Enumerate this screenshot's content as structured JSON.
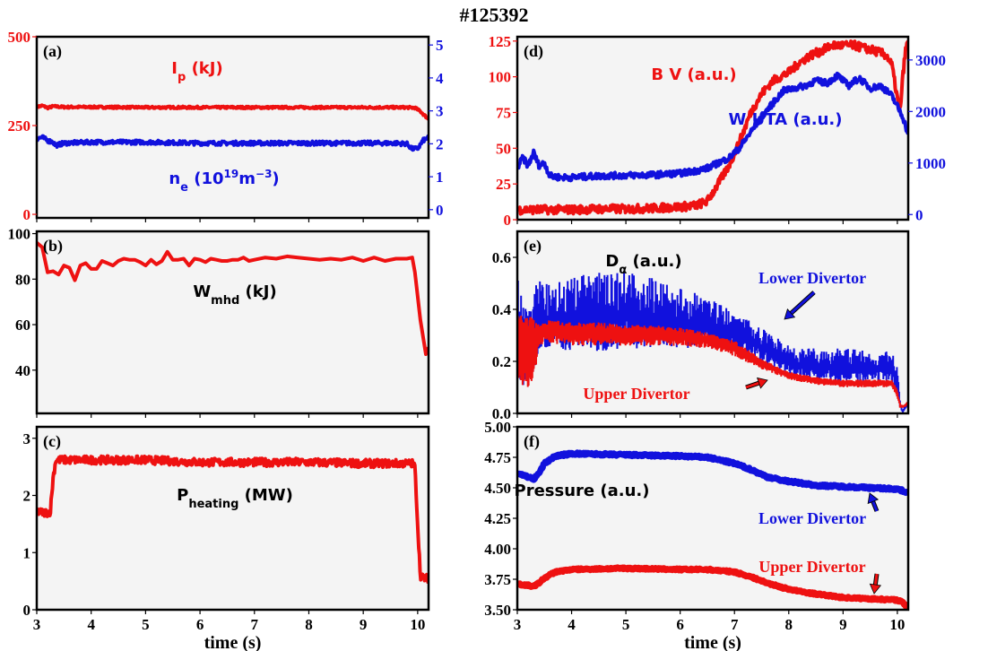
{
  "figure_title": "#125392",
  "colors": {
    "red": "#ee1111",
    "blue": "#1111dd",
    "axes_bg": "#f4f4f4",
    "frame": "#000000"
  },
  "chart_data": [
    {
      "id": "a",
      "type": "line",
      "panel_label": "(a)",
      "x_ticks": [
        3,
        4,
        5,
        6,
        7,
        8,
        9,
        10
      ],
      "x_tick_labels": [
        "",
        "",
        "",
        "",
        "",
        "",
        "",
        ""
      ],
      "xlim": [
        3,
        10.2
      ],
      "xlabel": "",
      "y_left": {
        "ylim": [
          -10,
          500
        ],
        "ticks": [
          0,
          250,
          500
        ],
        "tick_labels": [
          "0",
          "250",
          "500"
        ],
        "color": "#ee1111"
      },
      "y_right": {
        "ylim": [
          -0.25,
          5.25
        ],
        "ticks": [
          0,
          1,
          2,
          3,
          4,
          5
        ],
        "tick_labels": [
          "0",
          "1",
          "2",
          "3",
          "4",
          "5"
        ],
        "color": "#1111dd"
      },
      "series": [
        {
          "name": "Ip (kJ)",
          "axis": "left",
          "color": "#ee1111",
          "width": 4,
          "noise": 3,
          "x": [
            3,
            3.1,
            3.2,
            3.3,
            3.5,
            4,
            5,
            6,
            7,
            8,
            9,
            9.8,
            9.95,
            10.05,
            10.15,
            10.2
          ],
          "y": [
            302,
            306,
            300,
            304,
            302,
            302,
            301,
            301,
            301,
            301,
            301,
            301,
            300,
            290,
            275,
            268
          ]
        },
        {
          "name": "ne (10^19 m^-3)",
          "axis": "right",
          "color": "#1111dd",
          "width": 4,
          "noise": 0.06,
          "x": [
            3,
            3.1,
            3.2,
            3.3,
            3.35,
            3.5,
            4,
            5,
            6,
            7,
            8,
            9,
            9.6,
            9.8,
            9.9,
            10.0,
            10.1,
            10.2
          ],
          "y": [
            2.15,
            2.2,
            2.1,
            2.05,
            1.95,
            2.02,
            2.05,
            2.05,
            2.02,
            2.02,
            2.02,
            2.02,
            2.02,
            2.0,
            1.85,
            1.85,
            2.1,
            2.2
          ]
        }
      ],
      "annotations": [
        {
          "text": "I",
          "sub": "p",
          "rest": " (kJ)",
          "color": "#ee1111"
        },
        {
          "text": "n",
          "sub": "e",
          "rest": " (10",
          "sup": "19",
          "rest2": "m",
          "sup2": "−3",
          "rest3": ")",
          "color": "#1111dd"
        }
      ]
    },
    {
      "id": "b",
      "type": "line",
      "panel_label": "(b)",
      "x_ticks": [
        3,
        4,
        5,
        6,
        7,
        8,
        9,
        10
      ],
      "x_tick_labels": [
        "",
        "",
        "",
        "",
        "",
        "",
        "",
        ""
      ],
      "xlim": [
        3,
        10.2
      ],
      "xlabel": "",
      "y_left": {
        "ylim": [
          21,
          101
        ],
        "ticks": [
          40,
          60,
          80,
          100
        ],
        "tick_labels": [
          "40",
          "60",
          "80",
          "100"
        ],
        "color": "#000000"
      },
      "series": [
        {
          "name": "Wmhd (kJ)",
          "axis": "left",
          "color": "#ee1111",
          "width": 4,
          "noise": 0,
          "x": [
            3,
            3.1,
            3.2,
            3.3,
            3.4,
            3.5,
            3.6,
            3.7,
            3.8,
            3.9,
            4.0,
            4.1,
            4.2,
            4.3,
            4.4,
            4.5,
            4.6,
            4.7,
            4.8,
            4.9,
            5.0,
            5.1,
            5.2,
            5.3,
            5.4,
            5.5,
            5.6,
            5.7,
            5.8,
            5.9,
            6.0,
            6.1,
            6.2,
            6.3,
            6.4,
            6.5,
            6.6,
            6.7,
            6.8,
            6.9,
            7.0,
            7.2,
            7.4,
            7.6,
            7.8,
            8.0,
            8.2,
            8.4,
            8.6,
            8.8,
            9.0,
            9.2,
            9.4,
            9.6,
            9.8,
            9.9,
            9.95,
            10.05,
            10.15,
            10.2
          ],
          "y": [
            96,
            94,
            83,
            83.5,
            82,
            86,
            85,
            79.5,
            86,
            87,
            84.5,
            84.5,
            88,
            87,
            86,
            88,
            89,
            88.5,
            88.5,
            87.5,
            86,
            88.5,
            86.5,
            88,
            92,
            88.5,
            88.5,
            89,
            86,
            89,
            88.5,
            87.5,
            89,
            88.5,
            88,
            88,
            88.5,
            88.5,
            89.5,
            88,
            88.5,
            89.5,
            89,
            90,
            89.5,
            89,
            88.5,
            89,
            88.5,
            89.5,
            88,
            89.5,
            88,
            89,
            89,
            89.5,
            83,
            62,
            47,
            50
          ]
        }
      ],
      "annotations": [
        {
          "text": "W",
          "sub": "mhd",
          "rest": " (kJ)",
          "color": "#000000"
        }
      ]
    },
    {
      "id": "c",
      "type": "line",
      "panel_label": "(c)",
      "x_ticks": [
        3,
        4,
        5,
        6,
        7,
        8,
        9,
        10
      ],
      "x_tick_labels": [
        "3",
        "4",
        "5",
        "6",
        "7",
        "8",
        "9",
        "10"
      ],
      "xlim": [
        3,
        10.2
      ],
      "xlabel": "time (s)",
      "y_left": {
        "ylim": [
          0,
          3.2
        ],
        "ticks": [
          0,
          1,
          2,
          3
        ],
        "tick_labels": [
          "0",
          "1",
          "2",
          "3"
        ],
        "color": "#000000"
      },
      "series": [
        {
          "name": "Pheating (MW)",
          "axis": "left",
          "color": "#ee1111",
          "width": 4,
          "noise": 0.07,
          "x": [
            3,
            3.1,
            3.2,
            3.25,
            3.3,
            3.35,
            4,
            5,
            6,
            7,
            8,
            9,
            9.8,
            9.9,
            9.95,
            10.0,
            10.05,
            10.1,
            10.2
          ],
          "y": [
            1.72,
            1.7,
            1.7,
            1.72,
            2.3,
            2.62,
            2.62,
            2.62,
            2.58,
            2.58,
            2.58,
            2.56,
            2.56,
            2.56,
            2.5,
            1.5,
            0.6,
            0.55,
            0.55
          ]
        }
      ],
      "annotations": [
        {
          "text": "P",
          "sub": "heating",
          "rest": " (MW)",
          "color": "#000000"
        }
      ]
    },
    {
      "id": "d",
      "type": "line",
      "panel_label": "(d)",
      "x_ticks": [
        3,
        4,
        5,
        6,
        7,
        8,
        9,
        10
      ],
      "x_tick_labels": [
        "",
        "",
        "",
        "",
        "",
        "",
        "",
        ""
      ],
      "xlim": [
        3,
        10.2
      ],
      "xlabel": "",
      "y_left": {
        "ylim": [
          0,
          128
        ],
        "ticks": [
          0,
          25,
          50,
          75,
          100,
          125
        ],
        "tick_labels": [
          "0",
          "25",
          "50",
          "75",
          "100",
          "125"
        ],
        "color": "#ee1111"
      },
      "y_right": {
        "ylim": [
          -100,
          3450
        ],
        "ticks": [
          0,
          1000,
          2000,
          3000
        ],
        "tick_labels": [
          "0",
          "1000",
          "2000",
          "3000"
        ],
        "color": "#1111dd"
      },
      "series": [
        {
          "name": "B V (a.u.)",
          "axis": "left",
          "color": "#ee1111",
          "width": 4,
          "noise": 3,
          "x": [
            3,
            3.5,
            4,
            4.5,
            5,
            5.5,
            6,
            6.3,
            6.5,
            6.7,
            6.9,
            7.1,
            7.3,
            7.5,
            7.7,
            8.0,
            8.2,
            8.4,
            8.6,
            8.8,
            9.0,
            9.2,
            9.4,
            9.6,
            9.8,
            9.9,
            10.0,
            10.05,
            10.1,
            10.15,
            10.2
          ],
          "y": [
            7,
            7,
            7,
            7.5,
            7.5,
            8,
            9,
            10,
            13,
            25,
            38,
            55,
            75,
            88,
            97,
            103,
            110,
            115,
            118,
            122,
            122,
            122,
            120,
            118,
            115,
            108,
            85,
            75,
            100,
            118,
            125
          ]
        },
        {
          "name": "W UTA (a.u.)",
          "axis": "right",
          "color": "#1111dd",
          "width": 4,
          "noise": 60,
          "x": [
            3,
            3.1,
            3.2,
            3.3,
            3.4,
            3.5,
            3.6,
            3.8,
            4,
            4.5,
            5,
            5.5,
            6,
            6.3,
            6.5,
            6.7,
            6.9,
            7.1,
            7.3,
            7.5,
            7.7,
            7.9,
            8.1,
            8.3,
            8.5,
            8.7,
            8.9,
            9.1,
            9.3,
            9.5,
            9.7,
            9.9,
            10.0,
            10.1,
            10.2
          ],
          "y": [
            900,
            1100,
            950,
            1200,
            950,
            1000,
            750,
            720,
            720,
            750,
            760,
            770,
            800,
            850,
            900,
            1000,
            1100,
            1300,
            1600,
            1900,
            2150,
            2400,
            2450,
            2500,
            2600,
            2550,
            2700,
            2500,
            2650,
            2450,
            2500,
            2300,
            2100,
            1900,
            1550
          ]
        }
      ],
      "annotations": [
        {
          "text": "B V (a.u.)",
          "color": "#ee1111"
        },
        {
          "text": "W UTA (a.u.)",
          "color": "#1111dd"
        }
      ]
    },
    {
      "id": "e",
      "type": "line",
      "panel_label": "(e)",
      "x_ticks": [
        3,
        4,
        5,
        6,
        7,
        8,
        9,
        10
      ],
      "x_tick_labels": [
        "",
        "",
        "",
        "",
        "",
        "",
        "",
        ""
      ],
      "xlim": [
        3,
        10.2
      ],
      "xlabel": "",
      "y_left": {
        "ylim": [
          0,
          0.7
        ],
        "ticks": [
          0.0,
          0.2,
          0.4,
          0.6
        ],
        "tick_labels": [
          "0.0",
          "0.2",
          "0.4",
          "0.6"
        ],
        "color": "#000000"
      },
      "series": [
        {
          "name": "Lower Divertor",
          "axis": "left",
          "color": "#1111dd",
          "band": true,
          "x": [
            3,
            3.1,
            3.2,
            3.3,
            3.4,
            3.6,
            4,
            4.5,
            5,
            5.5,
            6,
            6.5,
            7,
            7.5,
            8,
            8.5,
            9,
            9.5,
            9.9,
            10.0,
            10.05,
            10.1,
            10.2
          ],
          "y_low": [
            0.1,
            0.1,
            0.09,
            0.15,
            0.25,
            0.25,
            0.24,
            0.24,
            0.25,
            0.25,
            0.25,
            0.25,
            0.24,
            0.2,
            0.15,
            0.13,
            0.12,
            0.12,
            0.12,
            0.08,
            0.02,
            0.0,
            0.03
          ],
          "y_high": [
            0.55,
            0.5,
            0.42,
            0.5,
            0.52,
            0.5,
            0.52,
            0.55,
            0.55,
            0.52,
            0.48,
            0.45,
            0.4,
            0.33,
            0.26,
            0.25,
            0.25,
            0.24,
            0.24,
            0.18,
            0.05,
            0.02,
            0.04
          ]
        },
        {
          "name": "Upper Divertor",
          "axis": "left",
          "color": "#ee1111",
          "band": true,
          "x": [
            3,
            3.1,
            3.2,
            3.3,
            3.4,
            3.6,
            4,
            4.5,
            5,
            5.5,
            6,
            6.5,
            7,
            7.5,
            8,
            8.5,
            9,
            9.5,
            9.9,
            10.0,
            10.05,
            10.1,
            10.2
          ],
          "y_low": [
            0.08,
            0.1,
            0.1,
            0.12,
            0.26,
            0.27,
            0.26,
            0.26,
            0.26,
            0.26,
            0.26,
            0.25,
            0.22,
            0.17,
            0.13,
            0.11,
            0.1,
            0.1,
            0.1,
            0.06,
            0.02,
            0.02,
            0.03
          ],
          "y_high": [
            0.38,
            0.38,
            0.39,
            0.36,
            0.34,
            0.36,
            0.35,
            0.35,
            0.34,
            0.34,
            0.33,
            0.31,
            0.28,
            0.21,
            0.16,
            0.14,
            0.13,
            0.13,
            0.13,
            0.09,
            0.04,
            0.03,
            0.05
          ]
        }
      ],
      "annotations": [
        {
          "text": "D",
          "sub": "α",
          "rest": " (a.u.)",
          "color": "#000000"
        },
        {
          "text": "Lower Divertor",
          "color": "#1111dd"
        },
        {
          "text": "Upper Divertor",
          "color": "#ee1111"
        }
      ]
    },
    {
      "id": "f",
      "type": "line",
      "panel_label": "(f)",
      "x_ticks": [
        3,
        4,
        5,
        6,
        7,
        8,
        9,
        10
      ],
      "x_tick_labels": [
        "3",
        "4",
        "5",
        "6",
        "7",
        "8",
        "9",
        "10"
      ],
      "xlim": [
        3,
        10.2
      ],
      "xlabel": "time (s)",
      "y_left": {
        "ylim": [
          3.5,
          5.0
        ],
        "ticks": [
          3.5,
          3.75,
          4.0,
          4.25,
          4.5,
          4.75,
          5.0
        ],
        "tick_labels": [
          "3.50",
          "3.75",
          "4.00",
          "4.25",
          "4.50",
          "4.75",
          "5.00"
        ],
        "color": "#000000"
      },
      "series": [
        {
          "name": "Lower Divertor",
          "axis": "left",
          "color": "#1111dd",
          "width": 7,
          "noise": 0.01,
          "x": [
            3,
            3.2,
            3.3,
            3.4,
            3.5,
            3.7,
            4,
            5,
            6,
            6.5,
            7,
            7.3,
            7.6,
            7.9,
            8.2,
            8.5,
            9,
            9.5,
            10,
            10.2
          ],
          "y": [
            4.62,
            4.59,
            4.57,
            4.62,
            4.7,
            4.76,
            4.78,
            4.77,
            4.76,
            4.75,
            4.7,
            4.65,
            4.59,
            4.56,
            4.54,
            4.52,
            4.51,
            4.5,
            4.49,
            4.46
          ]
        },
        {
          "name": "Upper Divertor",
          "axis": "left",
          "color": "#ee1111",
          "width": 7,
          "noise": 0.008,
          "x": [
            3,
            3.2,
            3.3,
            3.4,
            3.5,
            3.7,
            4,
            5,
            6,
            6.5,
            7,
            7.3,
            7.6,
            7.9,
            8.2,
            8.5,
            9,
            9.5,
            10,
            10.1,
            10.2
          ],
          "y": [
            3.71,
            3.7,
            3.69,
            3.72,
            3.76,
            3.81,
            3.83,
            3.84,
            3.83,
            3.83,
            3.81,
            3.77,
            3.72,
            3.68,
            3.65,
            3.63,
            3.6,
            3.59,
            3.58,
            3.56,
            3.51
          ]
        }
      ],
      "annotations": [
        {
          "text": "Pressure (a.u.)",
          "color": "#000000"
        },
        {
          "text": "Lower Divertor",
          "color": "#1111dd"
        },
        {
          "text": "Upper Divertor",
          "color": "#ee1111"
        }
      ]
    }
  ]
}
